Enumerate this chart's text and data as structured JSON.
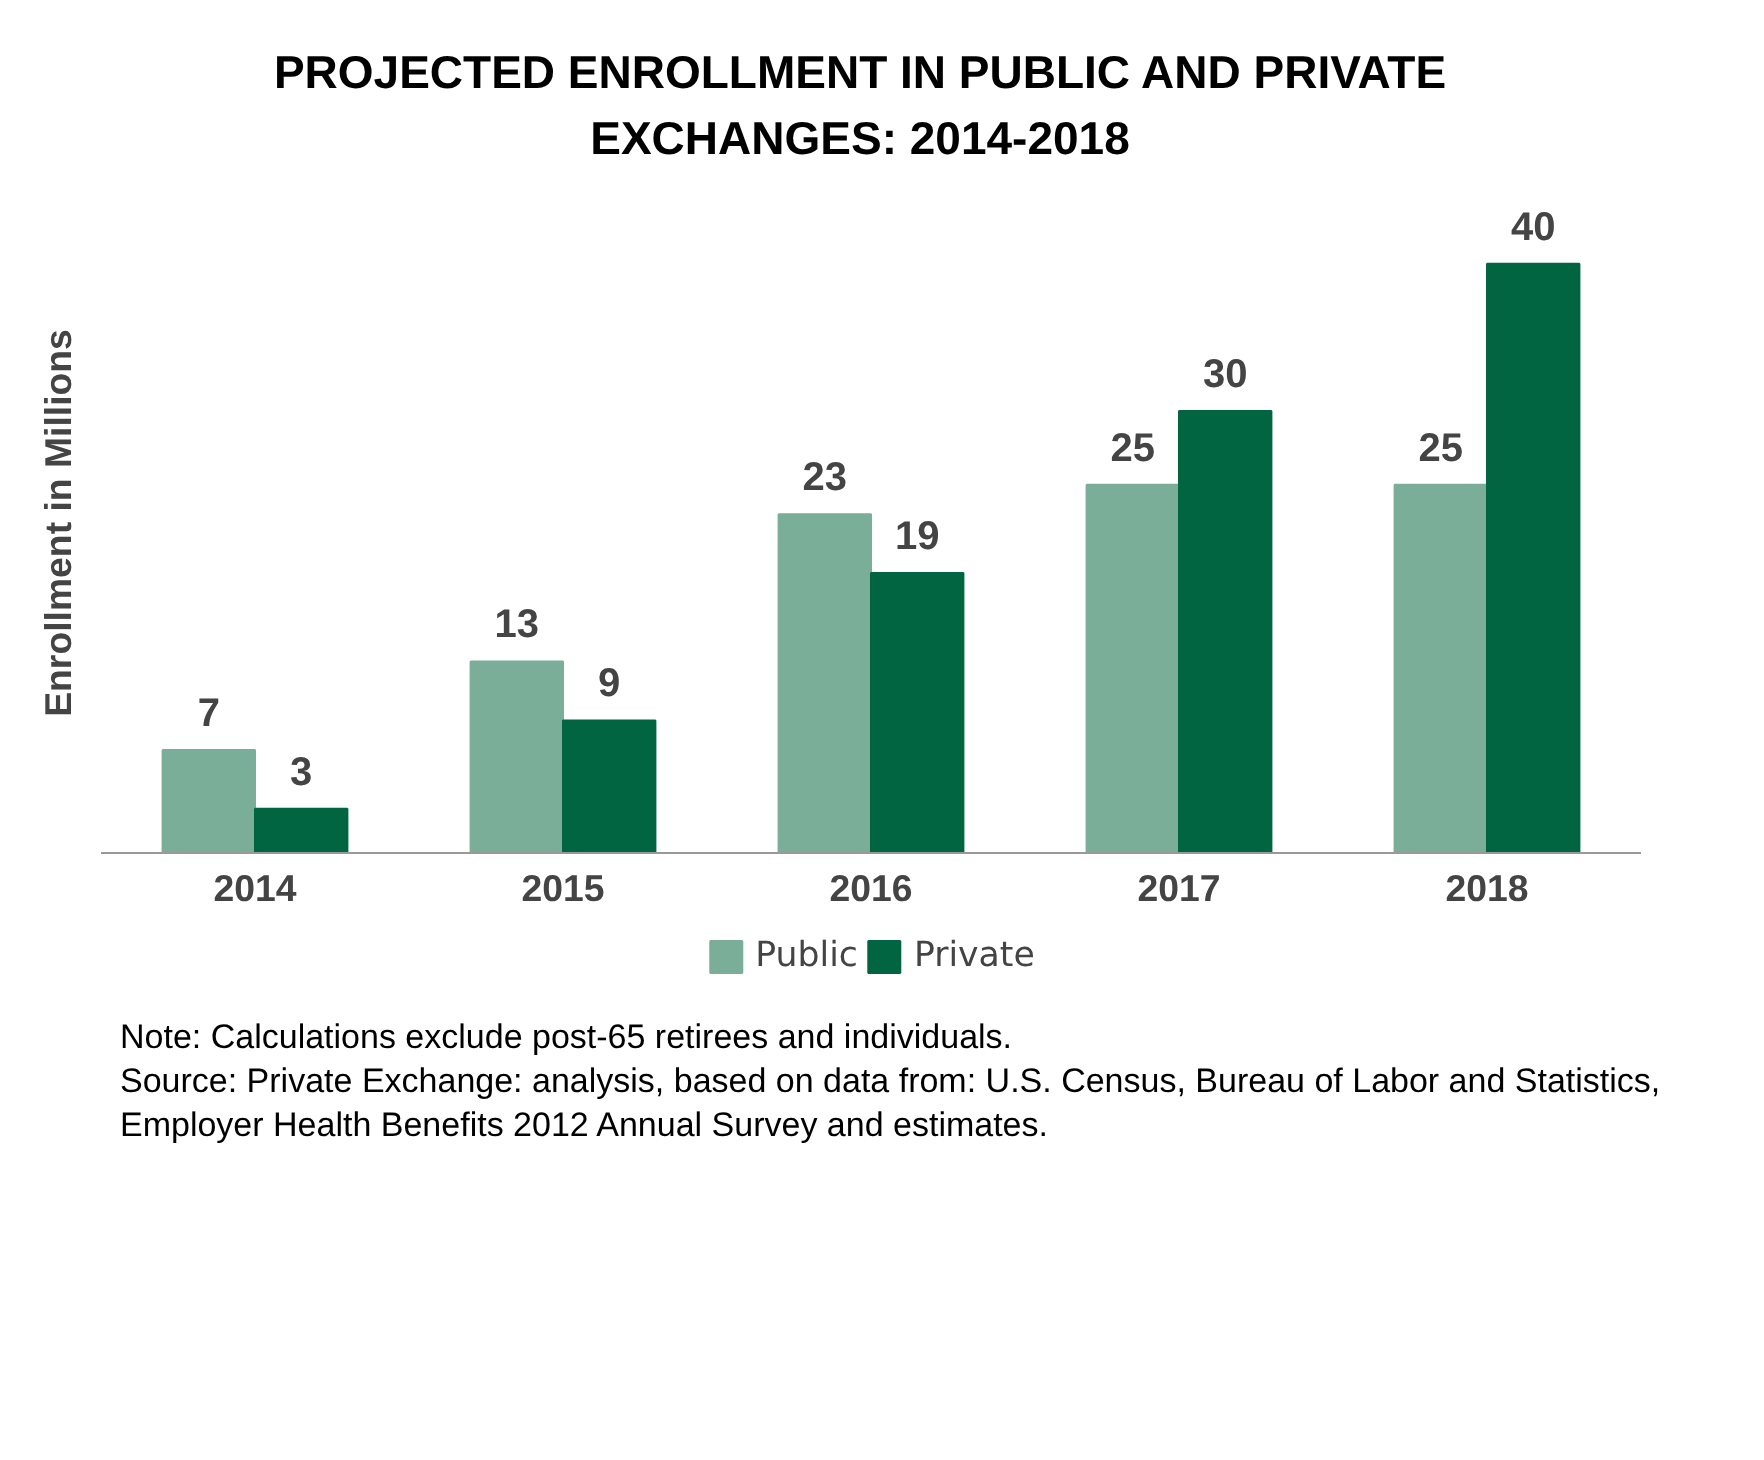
{
  "chart_data": {
    "type": "bar",
    "title": "PROJECTED ENROLLMENT IN PUBLIC AND PRIVATE EXCHANGES: 2014-2018",
    "ylabel": "Enrollment in Millions",
    "categories": [
      "2014",
      "2015",
      "2016",
      "2017",
      "2018"
    ],
    "series": [
      {
        "name": "Public",
        "color": "#7aae98",
        "values": [
          7,
          13,
          23,
          25,
          25
        ]
      },
      {
        "name": "Private",
        "color": "#006540",
        "values": [
          3,
          9,
          19,
          30,
          40
        ]
      }
    ],
    "data_labels": true,
    "grid": false,
    "legend": "bottom",
    "annotations": [
      "Note: Calculations exclude post-65 retirees and individuals.",
      "Source: Private Exchange: analysis, based on data from: U.S. Census, Bureau of Labor and Statistics, Employer Health Benefits 2012 Annual Survey and estimates."
    ]
  }
}
